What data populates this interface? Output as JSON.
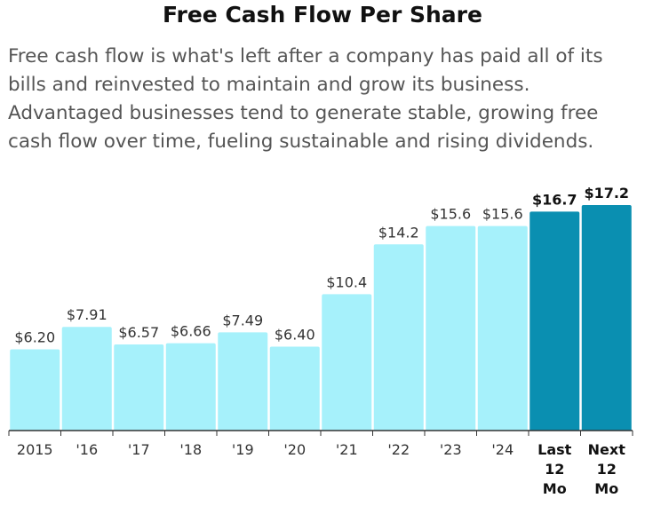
{
  "title": "Free Cash Flow Per Share",
  "description": "Free cash flow is what's left after a company has paid all of its bills and reinvested to maintain and grow its business. Advantaged businesses tend to generate stable, growing free cash flow over time, fueling sustainable and rising dividends.",
  "colors": {
    "historical_fill": "#a6f1fb",
    "highlight_fill": "#0a8fb1",
    "axis": "#333333",
    "label_text": "#333333"
  },
  "chart_data": {
    "type": "bar",
    "title": "Free Cash Flow Per Share",
    "xlabel": "",
    "ylabel": "",
    "ylim": [
      0,
      17.2
    ],
    "grid": false,
    "categories": [
      "2015",
      "'16",
      "'17",
      "'18",
      "'19",
      "'20",
      "'21",
      "'22",
      "'23",
      "'24",
      "Last 12 Mo",
      "Next 12 Mo"
    ],
    "category_lines": [
      [
        "2015"
      ],
      [
        "'16"
      ],
      [
        "'17"
      ],
      [
        "'18"
      ],
      [
        "'19"
      ],
      [
        "'20"
      ],
      [
        "'21"
      ],
      [
        "'22"
      ],
      [
        "'23"
      ],
      [
        "'24"
      ],
      [
        "Last",
        "12",
        "Mo"
      ],
      [
        "Next",
        "12",
        "Mo"
      ]
    ],
    "values": [
      6.2,
      7.91,
      6.57,
      6.66,
      7.49,
      6.4,
      10.4,
      14.2,
      15.6,
      15.6,
      16.7,
      17.2
    ],
    "value_labels": [
      "$6.20",
      "$7.91",
      "$6.57",
      "$6.66",
      "$7.49",
      "$6.40",
      "$10.4",
      "$14.2",
      "$15.6",
      "$15.6",
      "$16.7",
      "$17.2"
    ],
    "highlighted": [
      false,
      false,
      false,
      false,
      false,
      false,
      false,
      false,
      false,
      false,
      true,
      true
    ]
  }
}
